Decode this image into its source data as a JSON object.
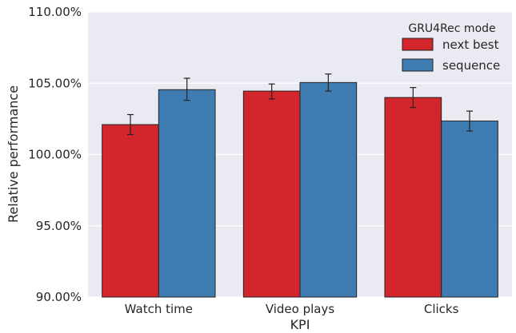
{
  "chart_data": {
    "type": "bar",
    "title": "",
    "xlabel": "KPI",
    "ylabel": "Relative performance",
    "categories": [
      "Watch time",
      "Video plays",
      "Clicks"
    ],
    "ylim": [
      90,
      110
    ],
    "yticks": [
      {
        "value": 90,
        "label": "90.00%"
      },
      {
        "value": 95,
        "label": "95.00%"
      },
      {
        "value": 100,
        "label": "100.00%"
      },
      {
        "value": 105,
        "label": "105.00%"
      },
      {
        "value": 110,
        "label": "110.00%"
      }
    ],
    "grid": true,
    "legend": {
      "title": "GRU4Rec mode",
      "placement": "top-right"
    },
    "series": [
      {
        "name": "next best",
        "color": "#d3262c",
        "values": [
          102.1,
          104.45,
          104.0
        ],
        "error_low": [
          101.4,
          103.9,
          103.3
        ],
        "error_high": [
          102.8,
          104.95,
          104.7
        ]
      },
      {
        "name": "sequence",
        "color": "#3e7cb1",
        "values": [
          104.55,
          105.05,
          102.35
        ],
        "error_low": [
          103.8,
          104.45,
          101.65
        ],
        "error_high": [
          105.35,
          105.65,
          103.05
        ]
      }
    ]
  }
}
